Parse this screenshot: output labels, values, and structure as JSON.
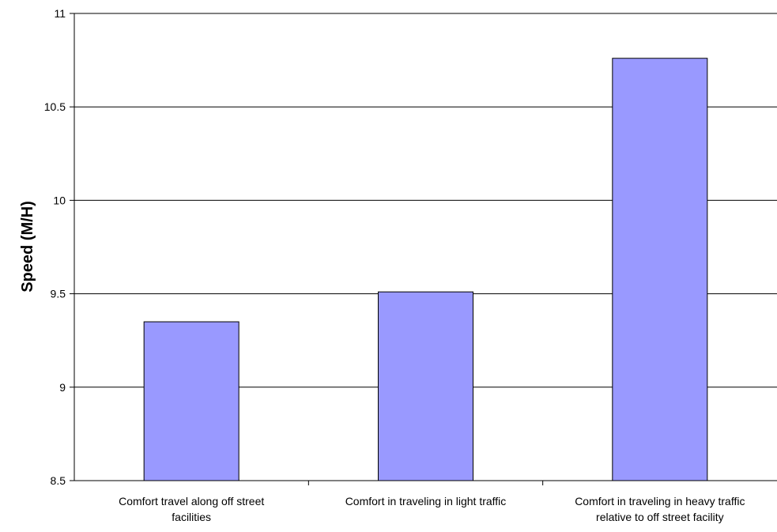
{
  "chart_data": {
    "type": "bar",
    "title": "",
    "xlabel": "",
    "ylabel": "Speed (M/H)",
    "ylim": [
      8.5,
      11
    ],
    "yticks": [
      "8.5",
      "9",
      "9.5",
      "10",
      "10.5",
      "11"
    ],
    "grid": true,
    "categories": [
      [
        "Comfort travel along off street",
        "facilities"
      ],
      [
        "Comfort in traveling in light traffic"
      ],
      [
        "Comfort in traveling in heavy traffic",
        "relative to off street facility"
      ]
    ],
    "values": [
      9.35,
      9.51,
      10.76
    ],
    "bar_color": "#9999ff",
    "bar_outline": "#000000"
  }
}
